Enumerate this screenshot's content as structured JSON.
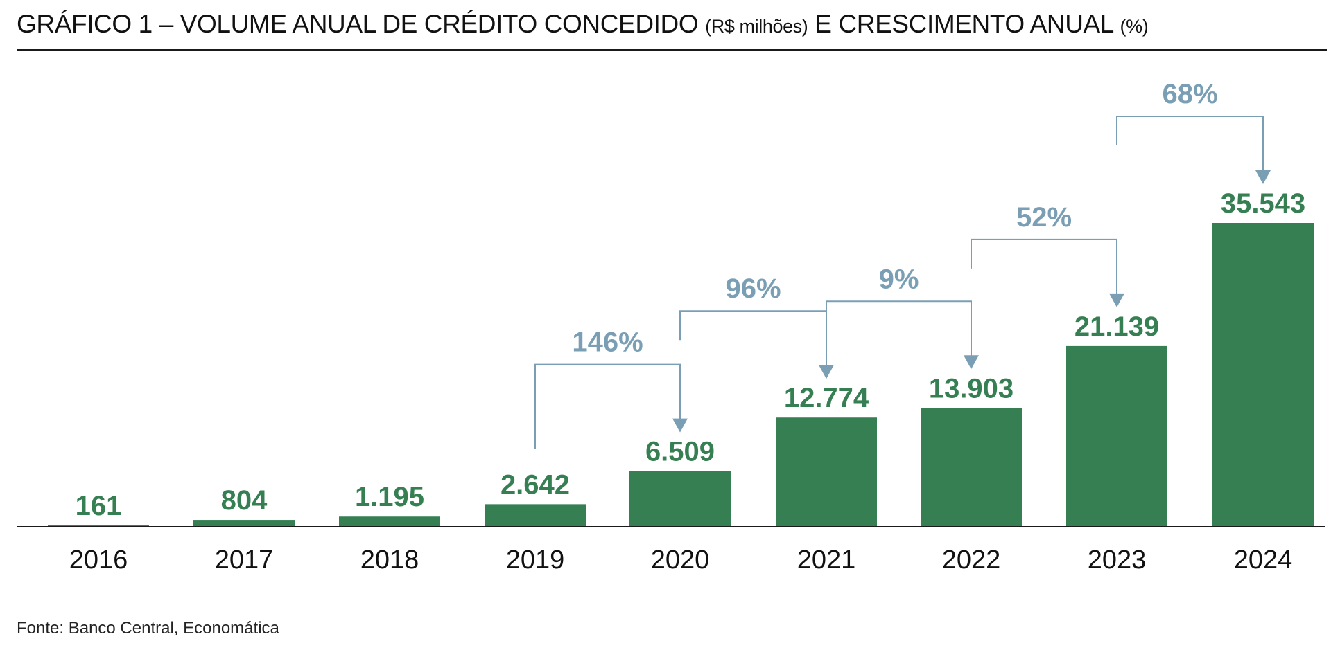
{
  "title": {
    "part1": "GRÁFICO 1 – VOLUME ANUAL DE CRÉDITO CONCEDIDO",
    "unit1": "(R$ milhões)",
    "part2": "E CRESCIMENTO ANUAL",
    "unit2": "(%)"
  },
  "source": "Fonte: Banco Central, Economática",
  "colors": {
    "bar": "#357f53",
    "value_label": "#357f53",
    "growth": "#7a9fb5",
    "axis": "#1a1a1a",
    "text": "#111111"
  },
  "chart_data": {
    "type": "bar",
    "title": "GRÁFICO 1 – VOLUME ANUAL DE CRÉDITO CONCEDIDO (R$ milhões) E CRESCIMENTO ANUAL (%)",
    "categories": [
      "2016",
      "2017",
      "2018",
      "2019",
      "2020",
      "2021",
      "2022",
      "2023",
      "2024"
    ],
    "values": [
      161,
      804,
      1195,
      2642,
      6509,
      12774,
      13903,
      21139,
      35543
    ],
    "value_labels": [
      "161",
      "804",
      "1.195",
      "2.642",
      "6.509",
      "12.774",
      "13.903",
      "21.139",
      "35.543"
    ],
    "ylim": [
      0,
      36000
    ],
    "grid": false,
    "legend": "none",
    "growth_annotations": [
      {
        "from": "2019",
        "to": "2020",
        "value": 146,
        "label": "146%"
      },
      {
        "from": "2020",
        "to": "2021",
        "value": 96,
        "label": "96%"
      },
      {
        "from": "2021",
        "to": "2022",
        "value": 9,
        "label": "9%"
      },
      {
        "from": "2022",
        "to": "2023",
        "value": 52,
        "label": "52%"
      },
      {
        "from": "2023",
        "to": "2024",
        "value": 68,
        "label": "68%"
      }
    ]
  }
}
